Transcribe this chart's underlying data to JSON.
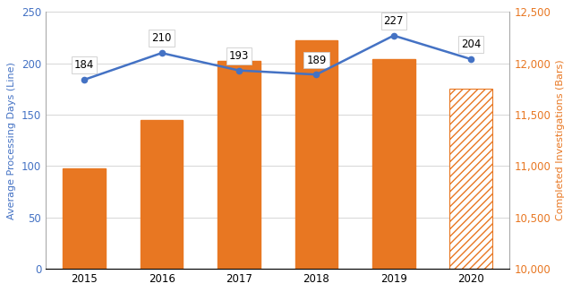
{
  "years": [
    "2015",
    "2016",
    "2017",
    "2018",
    "2019",
    "2020"
  ],
  "line_values": [
    184,
    210,
    193,
    189,
    227,
    204
  ],
  "bar_values_left": [
    98,
    145,
    202,
    222,
    204,
    175
  ],
  "bar_color": "#E87722",
  "line_color": "#4472C4",
  "left_ylabel": "Average Processing Days (Line)",
  "right_ylabel": "Completed Investigations (Bars)",
  "left_ylim": [
    0,
    250
  ],
  "right_ylim": [
    10000,
    12500
  ],
  "left_yticks": [
    0,
    50,
    100,
    150,
    200,
    250
  ],
  "right_yticks": [
    10000,
    10500,
    11000,
    11500,
    12000,
    12500
  ],
  "bar_width": 0.55,
  "label_fontsize": 8.5,
  "tick_fontsize": 8.5,
  "axis_label_fontsize": 8
}
